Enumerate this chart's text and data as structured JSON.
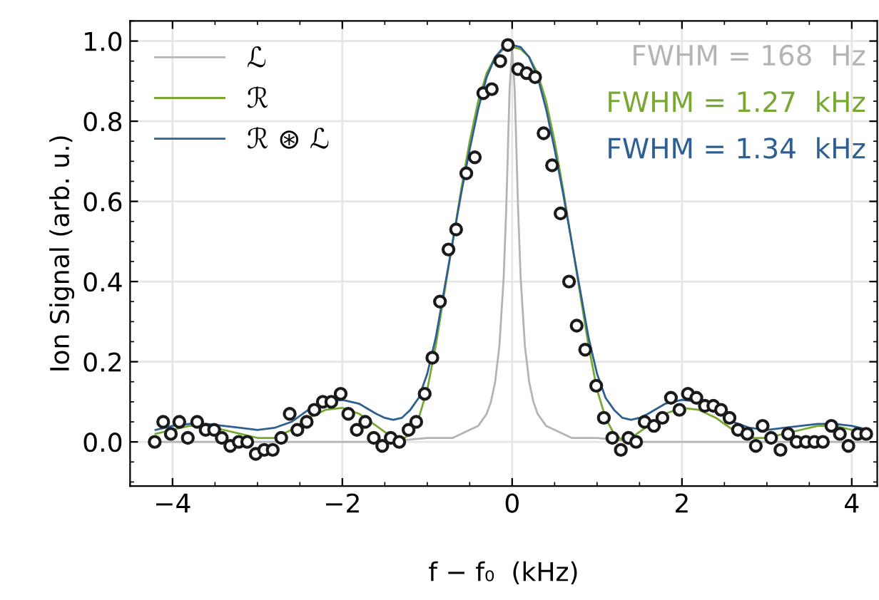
{
  "chart_data": {
    "type": "line",
    "xlabel": "f − f₀  (kHz)",
    "ylabel": "Ion Signal (arb. u.)",
    "xlim": [
      -4.5,
      4.3
    ],
    "ylim": [
      -0.11,
      1.05
    ],
    "xticks": [
      {
        "value": -4,
        "label": "−4"
      },
      {
        "value": -2,
        "label": "−2"
      },
      0,
      2,
      4
    ],
    "yticks": [
      {
        "value": 0,
        "label": "0.0"
      },
      0.2,
      0.4,
      0.6,
      0.8,
      {
        "value": 1,
        "label": "1.0"
      }
    ],
    "grid": true,
    "legend": "top left",
    "line_style": "solid",
    "annotations": [
      "FWHM = 168  Hz",
      "FWHM = 1.27  kHz",
      "FWHM = 1.34  kHz"
    ],
    "series": [
      {
        "name": "ℒ",
        "color": "#b4b4b4",
        "x": [
          -4.2,
          -3.0,
          -2.0,
          -1.5,
          -1.0,
          -0.7,
          -0.5,
          -0.4,
          -0.3,
          -0.25,
          -0.2,
          -0.15,
          -0.1,
          -0.07,
          -0.05,
          -0.03,
          0,
          0.03,
          0.05,
          0.07,
          0.1,
          0.15,
          0.2,
          0.25,
          0.3,
          0.4,
          0.5,
          0.7,
          1.0,
          1.5,
          2.0,
          3.0,
          4.2
        ],
        "values": [
          0.0,
          0.0,
          0.0,
          0.0,
          0.01,
          0.01,
          0.03,
          0.04,
          0.07,
          0.1,
          0.15,
          0.24,
          0.41,
          0.58,
          0.73,
          0.88,
          0.98,
          0.88,
          0.73,
          0.58,
          0.41,
          0.24,
          0.15,
          0.1,
          0.07,
          0.04,
          0.03,
          0.01,
          0.01,
          0.0,
          0.0,
          0.0,
          0.0
        ]
      },
      {
        "name": "ℛ",
        "color": "#78a832",
        "x": [
          -4.2,
          -4.0,
          -3.8,
          -3.6,
          -3.4,
          -3.2,
          -3.0,
          -2.8,
          -2.6,
          -2.4,
          -2.2,
          -2.0,
          -1.8,
          -1.6,
          -1.4,
          -1.3,
          -1.2,
          -1.1,
          -1.0,
          -0.9,
          -0.8,
          -0.7,
          -0.6,
          -0.5,
          -0.4,
          -0.3,
          -0.2,
          -0.1,
          0,
          0.1,
          0.2,
          0.3,
          0.4,
          0.5,
          0.6,
          0.7,
          0.8,
          0.9,
          1.0,
          1.1,
          1.2,
          1.3,
          1.4,
          1.6,
          1.8,
          2.0,
          2.2,
          2.4,
          2.6,
          2.8,
          3.0,
          3.2,
          3.4,
          3.6,
          3.8,
          4.0,
          4.2
        ],
        "values": [
          0.02,
          0.03,
          0.04,
          0.04,
          0.03,
          0.02,
          0.01,
          0.01,
          0.03,
          0.06,
          0.08,
          0.085,
          0.07,
          0.04,
          0.01,
          0.005,
          0.02,
          0.06,
          0.13,
          0.24,
          0.37,
          0.5,
          0.63,
          0.75,
          0.85,
          0.92,
          0.96,
          0.98,
          0.985,
          0.98,
          0.96,
          0.92,
          0.85,
          0.75,
          0.63,
          0.5,
          0.37,
          0.24,
          0.13,
          0.06,
          0.02,
          0.005,
          0.01,
          0.04,
          0.07,
          0.085,
          0.08,
          0.06,
          0.03,
          0.01,
          0.01,
          0.02,
          0.03,
          0.04,
          0.04,
          0.03,
          0.02
        ]
      },
      {
        "name": "ℛ ⊛ ℒ",
        "color": "#2e5f92",
        "x": [
          -4.2,
          -4.0,
          -3.8,
          -3.6,
          -3.4,
          -3.2,
          -3.0,
          -2.8,
          -2.6,
          -2.4,
          -2.2,
          -2.0,
          -1.8,
          -1.6,
          -1.5,
          -1.4,
          -1.3,
          -1.2,
          -1.1,
          -1.0,
          -0.9,
          -0.8,
          -0.7,
          -0.6,
          -0.5,
          -0.4,
          -0.3,
          -0.2,
          -0.1,
          0,
          0.1,
          0.2,
          0.3,
          0.4,
          0.5,
          0.6,
          0.7,
          0.8,
          0.9,
          1.0,
          1.1,
          1.2,
          1.3,
          1.4,
          1.5,
          1.6,
          1.8,
          2.0,
          2.2,
          2.4,
          2.6,
          2.8,
          3.0,
          3.2,
          3.4,
          3.6,
          3.8,
          4.0,
          4.2
        ],
        "values": [
          0.03,
          0.04,
          0.045,
          0.045,
          0.04,
          0.035,
          0.03,
          0.035,
          0.05,
          0.08,
          0.1,
          0.105,
          0.095,
          0.07,
          0.06,
          0.055,
          0.06,
          0.08,
          0.11,
          0.17,
          0.26,
          0.38,
          0.5,
          0.62,
          0.73,
          0.83,
          0.91,
          0.96,
          0.985,
          0.99,
          0.985,
          0.96,
          0.91,
          0.83,
          0.73,
          0.62,
          0.5,
          0.38,
          0.26,
          0.17,
          0.11,
          0.08,
          0.06,
          0.055,
          0.06,
          0.07,
          0.095,
          0.105,
          0.1,
          0.08,
          0.05,
          0.035,
          0.03,
          0.035,
          0.04,
          0.045,
          0.045,
          0.04,
          0.03
        ]
      },
      {
        "type": "scatter",
        "color": "#1a1a1a",
        "marker": "circle",
        "x": [
          -4.21,
          -4.11,
          -4.02,
          -3.92,
          -3.82,
          -3.71,
          -3.61,
          -3.51,
          -3.42,
          -3.32,
          -3.22,
          -3.12,
          -3.02,
          -2.92,
          -2.82,
          -2.72,
          -2.62,
          -2.53,
          -2.42,
          -2.33,
          -2.23,
          -2.13,
          -2.02,
          -1.93,
          -1.83,
          -1.73,
          -1.63,
          -1.53,
          -1.43,
          -1.33,
          -1.22,
          -1.13,
          -1.03,
          -0.94,
          -0.85,
          -0.75,
          -0.66,
          -0.54,
          -0.44,
          -0.34,
          -0.24,
          -0.14,
          -0.05,
          0.07,
          0.17,
          0.27,
          0.37,
          0.47,
          0.57,
          0.67,
          0.76,
          0.86,
          0.99,
          1.08,
          1.18,
          1.28,
          1.37,
          1.46,
          1.56,
          1.67,
          1.77,
          1.87,
          1.97,
          2.07,
          2.17,
          2.27,
          2.37,
          2.46,
          2.56,
          2.66,
          2.77,
          2.87,
          2.95,
          3.05,
          3.16,
          3.25,
          3.35,
          3.46,
          3.56,
          3.66,
          3.76,
          3.86,
          3.96,
          4.07,
          4.17
        ],
        "values": [
          0.0,
          0.05,
          0.02,
          0.05,
          0.01,
          0.05,
          0.03,
          0.03,
          0.01,
          -0.01,
          0.0,
          0.0,
          -0.03,
          -0.02,
          -0.02,
          0.01,
          0.07,
          0.03,
          0.05,
          0.08,
          0.1,
          0.1,
          0.12,
          0.07,
          0.03,
          0.05,
          0.01,
          -0.01,
          0.01,
          0.0,
          0.03,
          0.05,
          0.12,
          0.21,
          0.35,
          0.48,
          0.53,
          0.67,
          0.71,
          0.87,
          0.88,
          0.95,
          0.99,
          0.93,
          0.92,
          0.91,
          0.77,
          0.69,
          0.57,
          0.4,
          0.29,
          0.23,
          0.14,
          0.06,
          0.01,
          -0.02,
          0.01,
          0.0,
          0.05,
          0.04,
          0.06,
          0.11,
          0.08,
          0.12,
          0.11,
          0.09,
          0.09,
          0.08,
          0.06,
          0.03,
          0.02,
          -0.01,
          0.04,
          0.01,
          -0.02,
          0.02,
          0.0,
          0.0,
          0.0,
          0.0,
          0.04,
          0.02,
          -0.01,
          0.02,
          0.02
        ]
      }
    ]
  }
}
